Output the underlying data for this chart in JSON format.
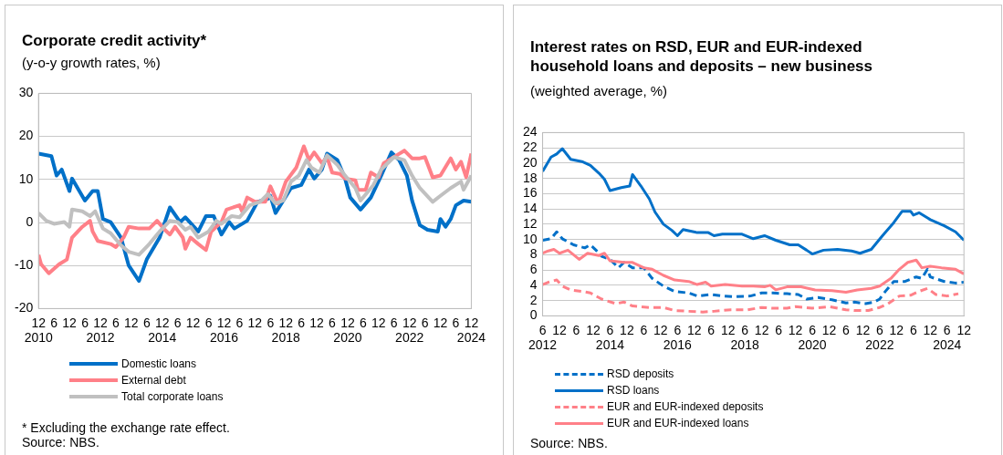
{
  "chart_data": [
    {
      "type": "line",
      "title": "Corporate credit activity*",
      "subtitle": "(y-o-y growth rates, %)",
      "xlim": [
        "2010-12",
        "2024-12"
      ],
      "xticks": [
        {
          "value": "2010-12",
          "label": "12\n2010"
        },
        {
          "value": "2011-06",
          "label": "6"
        },
        {
          "value": "2011-12",
          "label": "12"
        },
        {
          "value": "2012-06",
          "label": "6"
        },
        {
          "value": "2012-12",
          "label": "12\n2012"
        },
        {
          "value": "2013-06",
          "label": "6"
        },
        {
          "value": "2013-12",
          "label": "12"
        },
        {
          "value": "2014-06",
          "label": "6"
        },
        {
          "value": "2014-12",
          "label": "12\n2014"
        },
        {
          "value": "2015-06",
          "label": "6"
        },
        {
          "value": "2015-12",
          "label": "12"
        },
        {
          "value": "2016-06",
          "label": "6"
        },
        {
          "value": "2016-12",
          "label": "12\n2016"
        },
        {
          "value": "2017-06",
          "label": "6"
        },
        {
          "value": "2017-12",
          "label": "12"
        },
        {
          "value": "2018-06",
          "label": "6"
        },
        {
          "value": "2018-12",
          "label": "12\n2018"
        },
        {
          "value": "2019-06",
          "label": "6"
        },
        {
          "value": "2019-12",
          "label": "12"
        },
        {
          "value": "2020-06",
          "label": "6"
        },
        {
          "value": "2020-12",
          "label": "12\n2020"
        },
        {
          "value": "2021-06",
          "label": "6"
        },
        {
          "value": "2021-12",
          "label": "12"
        },
        {
          "value": "2022-06",
          "label": "6"
        },
        {
          "value": "2022-12",
          "label": "12\n2022"
        },
        {
          "value": "2023-06",
          "label": "6"
        },
        {
          "value": "2023-12",
          "label": "12"
        },
        {
          "value": "2024-06",
          "label": "6"
        },
        {
          "value": "2024-12",
          "label": "12\n2024"
        }
      ],
      "ylim": [
        -20,
        30
      ],
      "yticks": [
        -20,
        -10,
        0,
        10,
        20,
        30
      ],
      "grid": "y",
      "legend": "bottom",
      "marker": "none",
      "annotations": [
        "* Excluding the exchange rate effect.",
        "Source: NBS."
      ],
      "series": [
        {
          "name": "Domestic loans",
          "color": "#0070c8",
          "x": [
            "2010-12",
            "2011-05",
            "2011-07",
            "2011-09",
            "2011-12",
            "2012-01",
            "2012-06",
            "2012-09",
            "2012-11",
            "2013-01",
            "2013-04",
            "2013-08",
            "2013-11",
            "2014-03",
            "2014-06",
            "2014-11",
            "2015-03",
            "2015-07",
            "2015-09",
            "2016-02",
            "2016-05",
            "2016-08",
            "2016-11",
            "2017-02",
            "2017-04",
            "2017-09",
            "2018-01",
            "2018-05",
            "2018-06",
            "2018-08",
            "2018-11",
            "2019-02",
            "2019-06",
            "2019-09",
            "2019-11",
            "2020-02",
            "2020-04",
            "2020-08",
            "2020-11",
            "2021-01",
            "2021-05",
            "2021-09",
            "2022-01",
            "2022-05",
            "2022-08",
            "2022-11",
            "2023-01",
            "2023-04",
            "2023-07",
            "2023-11",
            "2023-12",
            "2024-02",
            "2024-04",
            "2024-06",
            "2024-09",
            "2024-12"
          ],
          "values": [
            16.0,
            15.4,
            10.9,
            12.3,
            7.3,
            10.2,
            5.1,
            7.3,
            7.3,
            0.8,
            0.1,
            -3.5,
            -10.0,
            -13.6,
            -8.6,
            -3.5,
            3.5,
            0.1,
            1.2,
            -2.1,
            1.5,
            1.5,
            -2.8,
            0.1,
            -1.4,
            0.4,
            4.8,
            5.5,
            6.2,
            2.2,
            5.1,
            8.0,
            8.7,
            12.3,
            10.2,
            12.3,
            16.0,
            14.5,
            10.2,
            5.8,
            3.0,
            5.8,
            10.9,
            16.3,
            14.5,
            10.9,
            5.1,
            -0.6,
            -1.7,
            -2.1,
            0.8,
            -1.0,
            0.8,
            4.0,
            5.1,
            4.8
          ]
        },
        {
          "name": "External debt",
          "color": "#ff8088",
          "x": [
            "2010-12",
            "2011-01",
            "2011-04",
            "2011-08",
            "2011-11",
            "2012-01",
            "2012-05",
            "2012-08",
            "2012-09",
            "2012-11",
            "2013-04",
            "2013-06",
            "2013-09",
            "2013-11",
            "2014-03",
            "2014-07",
            "2014-10",
            "2015-01",
            "2015-03",
            "2015-05",
            "2015-08",
            "2015-09",
            "2015-11",
            "2016-02",
            "2016-05",
            "2016-07",
            "2016-11",
            "2017-01",
            "2017-06",
            "2017-07",
            "2017-09",
            "2017-12",
            "2018-04",
            "2018-06",
            "2018-09",
            "2018-12",
            "2019-04",
            "2019-07",
            "2019-09",
            "2019-11",
            "2020-02",
            "2020-04",
            "2020-06",
            "2020-09",
            "2020-11",
            "2021-03",
            "2021-04",
            "2021-07",
            "2021-09",
            "2021-12",
            "2022-02",
            "2022-07",
            "2022-10",
            "2023-01",
            "2023-04",
            "2023-06",
            "2023-09",
            "2023-12",
            "2024-04",
            "2024-06",
            "2024-08",
            "2024-10",
            "2024-12"
          ],
          "values": [
            -7.5,
            -9.7,
            -11.8,
            -9.7,
            -8.6,
            -3.5,
            -1.0,
            0.4,
            -2.1,
            -4.3,
            -5.0,
            -5.7,
            -3.5,
            -1.0,
            -1.4,
            -1.4,
            0.4,
            -1.7,
            -2.8,
            -1.0,
            -3.5,
            -6.1,
            -3.5,
            -5.0,
            -6.4,
            -2.1,
            0.1,
            3.0,
            4.0,
            2.6,
            5.8,
            4.8,
            4.8,
            8.4,
            4.4,
            9.5,
            12.7,
            17.7,
            14.5,
            16.3,
            13.8,
            15.2,
            11.6,
            11.3,
            10.2,
            9.8,
            7.6,
            7.6,
            11.6,
            10.5,
            13.8,
            15.6,
            16.7,
            14.9,
            14.9,
            15.2,
            10.5,
            10.9,
            14.9,
            12.3,
            14.1,
            10.5,
            16.0
          ]
        },
        {
          "name": "Total corporate loans",
          "color": "#c0c0c0",
          "x": [
            "2010-12",
            "2011-03",
            "2011-06",
            "2011-10",
            "2011-12",
            "2012-01",
            "2012-05",
            "2012-08",
            "2012-10",
            "2013-01",
            "2013-04",
            "2013-08",
            "2013-11",
            "2014-03",
            "2014-07",
            "2014-11",
            "2015-03",
            "2015-06",
            "2015-09",
            "2015-11",
            "2016-02",
            "2016-06",
            "2016-09",
            "2016-11",
            "2017-03",
            "2017-06",
            "2017-10",
            "2018-02",
            "2018-05",
            "2018-08",
            "2018-11",
            "2019-02",
            "2019-05",
            "2019-08",
            "2019-10",
            "2020-01",
            "2020-04",
            "2020-08",
            "2020-11",
            "2021-03",
            "2021-05",
            "2021-10",
            "2022-01",
            "2022-06",
            "2022-10",
            "2023-01",
            "2023-04",
            "2023-09",
            "2023-12",
            "2024-04",
            "2024-08",
            "2024-09",
            "2024-12"
          ],
          "values": [
            2.2,
            0.4,
            -0.3,
            0.1,
            -1.0,
            3.0,
            2.6,
            1.5,
            2.6,
            -1.4,
            -2.5,
            -5.3,
            -6.8,
            -7.5,
            -5.0,
            -2.1,
            0.4,
            0.1,
            -1.7,
            -1.0,
            -3.5,
            -2.1,
            0.4,
            -0.3,
            1.5,
            1.2,
            4.0,
            4.8,
            6.6,
            4.4,
            5.1,
            9.5,
            10.9,
            14.5,
            12.7,
            11.6,
            15.6,
            13.4,
            10.9,
            8.0,
            5.1,
            8.7,
            12.3,
            15.2,
            14.5,
            10.9,
            8.0,
            4.8,
            6.2,
            8.0,
            9.5,
            7.6,
            10.9
          ]
        }
      ]
    },
    {
      "type": "line",
      "title": "Interest rates on RSD, EUR and EUR-indexed household loans and deposits – new business",
      "subtitle": "(weighted average, %)",
      "xlim": [
        "2012-06",
        "2024-12"
      ],
      "xticks": [
        {
          "value": "2012-06",
          "label": "6\n2012"
        },
        {
          "value": "2012-12",
          "label": "12"
        },
        {
          "value": "2013-06",
          "label": "6"
        },
        {
          "value": "2013-12",
          "label": "12"
        },
        {
          "value": "2014-06",
          "label": "6\n2014"
        },
        {
          "value": "2014-12",
          "label": "12"
        },
        {
          "value": "2015-06",
          "label": "6"
        },
        {
          "value": "2015-12",
          "label": "12"
        },
        {
          "value": "2016-06",
          "label": "6\n2016"
        },
        {
          "value": "2016-12",
          "label": "12"
        },
        {
          "value": "2017-06",
          "label": "6"
        },
        {
          "value": "2017-12",
          "label": "12"
        },
        {
          "value": "2018-06",
          "label": "6\n2018"
        },
        {
          "value": "2018-12",
          "label": "12"
        },
        {
          "value": "2019-06",
          "label": "6"
        },
        {
          "value": "2019-12",
          "label": "12"
        },
        {
          "value": "2020-06",
          "label": "6\n2020"
        },
        {
          "value": "2020-12",
          "label": "12"
        },
        {
          "value": "2021-06",
          "label": "6"
        },
        {
          "value": "2021-12",
          "label": "12"
        },
        {
          "value": "2022-06",
          "label": "6\n2022"
        },
        {
          "value": "2022-12",
          "label": "12"
        },
        {
          "value": "2023-06",
          "label": "6"
        },
        {
          "value": "2023-12",
          "label": "12"
        },
        {
          "value": "2024-06",
          "label": "6\n2024"
        },
        {
          "value": "2024-12",
          "label": "12"
        }
      ],
      "ylim": [
        0,
        24
      ],
      "yticks": [
        0,
        2,
        4,
        6,
        8,
        10,
        12,
        14,
        16,
        18,
        20,
        22,
        24
      ],
      "grid": "y",
      "legend": "bottom",
      "marker": "none",
      "annotations": [
        "Source: NBS."
      ],
      "series": [
        {
          "name": "RSD deposits",
          "color": "#0070c8",
          "line_style": "dashed",
          "x": [
            "2012-06",
            "2012-09",
            "2012-11",
            "2013-01",
            "2013-05",
            "2013-09",
            "2013-11",
            "2014-01",
            "2014-03",
            "2014-06",
            "2014-09",
            "2014-11",
            "2015-02",
            "2015-06",
            "2015-09",
            "2016-01",
            "2016-05",
            "2016-10",
            "2017-01",
            "2017-06",
            "2017-10",
            "2018-02",
            "2018-08",
            "2018-12",
            "2019-04",
            "2019-09",
            "2020-01",
            "2020-04",
            "2020-08",
            "2021-01",
            "2021-06",
            "2021-09",
            "2022-01",
            "2022-04",
            "2022-06",
            "2022-08",
            "2022-11",
            "2023-03",
            "2023-07",
            "2023-09",
            "2023-11",
            "2023-12",
            "2024-05",
            "2024-09",
            "2024-12"
          ],
          "values": [
            9.9,
            10.1,
            11.0,
            10.1,
            9.3,
            8.9,
            9.3,
            8.6,
            7.8,
            7.4,
            6.3,
            7.0,
            6.3,
            6.3,
            4.9,
            3.9,
            3.2,
            3.0,
            2.6,
            2.8,
            2.6,
            2.5,
            2.6,
            3.0,
            3.0,
            2.9,
            2.8,
            2.2,
            2.4,
            2.1,
            1.7,
            1.8,
            1.6,
            1.8,
            2.2,
            3.2,
            4.5,
            4.5,
            5.1,
            4.9,
            6.1,
            5.1,
            4.5,
            4.3,
            4.4
          ]
        },
        {
          "name": "RSD loans",
          "color": "#0070c8",
          "line_style": "solid",
          "x": [
            "2012-06",
            "2012-09",
            "2012-11",
            "2013-01",
            "2013-04",
            "2013-08",
            "2013-11",
            "2014-02",
            "2014-04",
            "2014-06",
            "2014-10",
            "2015-01",
            "2015-02",
            "2015-05",
            "2015-08",
            "2015-10",
            "2016-01",
            "2016-04",
            "2016-06",
            "2016-08",
            "2017-01",
            "2017-05",
            "2017-07",
            "2017-10",
            "2018-05",
            "2018-09",
            "2019-01",
            "2019-05",
            "2019-10",
            "2020-01",
            "2020-04",
            "2020-06",
            "2020-10",
            "2021-03",
            "2021-08",
            "2021-11",
            "2022-03",
            "2022-07",
            "2022-11",
            "2023-02",
            "2023-05",
            "2023-06",
            "2023-08",
            "2023-12",
            "2024-05",
            "2024-09",
            "2024-12"
          ],
          "values": [
            18.9,
            20.8,
            21.2,
            21.9,
            20.5,
            20.2,
            19.7,
            18.7,
            17.9,
            16.4,
            16.8,
            17.0,
            18.5,
            17.0,
            15.3,
            13.6,
            12.0,
            11.2,
            10.5,
            11.3,
            10.9,
            10.9,
            10.5,
            10.7,
            10.7,
            10.1,
            10.5,
            9.9,
            9.3,
            9.3,
            8.6,
            8.1,
            8.6,
            8.7,
            8.5,
            8.2,
            8.7,
            10.5,
            12.2,
            13.7,
            13.7,
            13.2,
            13.5,
            12.6,
            11.8,
            11.0,
            9.9
          ]
        },
        {
          "name": "EUR and EUR-indexed deposits",
          "color": "#ff8088",
          "line_style": "dashed",
          "x": [
            "2012-06",
            "2012-08",
            "2012-11",
            "2013-01",
            "2013-04",
            "2013-08",
            "2013-11",
            "2014-03",
            "2014-08",
            "2014-11",
            "2015-02",
            "2015-08",
            "2016-01",
            "2016-05",
            "2016-10",
            "2017-03",
            "2017-07",
            "2018-01",
            "2018-07",
            "2018-12",
            "2019-04",
            "2019-09",
            "2019-12",
            "2020-06",
            "2020-12",
            "2021-06",
            "2021-09",
            "2022-02",
            "2022-06",
            "2022-09",
            "2023-01",
            "2023-05",
            "2023-08",
            "2023-11",
            "2024-02",
            "2024-06",
            "2024-10"
          ],
          "values": [
            4.1,
            4.4,
            4.7,
            3.9,
            3.4,
            3.2,
            3.0,
            2.2,
            1.6,
            1.8,
            1.3,
            1.1,
            1.1,
            0.7,
            0.6,
            0.5,
            0.6,
            0.8,
            0.8,
            1.1,
            1.0,
            1.0,
            1.2,
            1.0,
            1.2,
            0.8,
            0.7,
            0.7,
            1.1,
            1.6,
            2.6,
            2.7,
            3.2,
            3.6,
            2.8,
            2.6,
            2.9
          ]
        },
        {
          "name": "EUR and EUR-indexed loans",
          "color": "#ff8088",
          "line_style": "solid",
          "x": [
            "2012-06",
            "2012-08",
            "2012-10",
            "2012-12",
            "2013-03",
            "2013-07",
            "2013-10",
            "2014-02",
            "2014-04",
            "2014-06",
            "2014-11",
            "2015-02",
            "2015-06",
            "2015-09",
            "2016-01",
            "2016-05",
            "2016-10",
            "2017-01",
            "2017-04",
            "2017-06",
            "2017-11",
            "2018-05",
            "2018-09",
            "2019-01",
            "2019-03",
            "2019-05",
            "2019-09",
            "2020-02",
            "2020-07",
            "2021-01",
            "2021-06",
            "2021-10",
            "2022-03",
            "2022-06",
            "2022-10",
            "2023-01",
            "2023-04",
            "2023-07",
            "2023-09",
            "2023-12",
            "2024-04",
            "2024-09",
            "2024-12"
          ],
          "values": [
            8.2,
            8.5,
            8.7,
            8.2,
            8.6,
            7.4,
            8.2,
            7.9,
            8.2,
            7.2,
            7.0,
            7.0,
            6.3,
            6.1,
            5.3,
            4.7,
            4.5,
            4.1,
            4.4,
            3.9,
            4.1,
            3.9,
            3.9,
            3.8,
            4.0,
            3.4,
            3.8,
            3.8,
            3.4,
            3.3,
            3.1,
            3.4,
            3.6,
            3.9,
            4.9,
            6.1,
            7.0,
            7.3,
            6.3,
            6.5,
            6.3,
            6.1,
            5.5
          ]
        }
      ]
    }
  ]
}
